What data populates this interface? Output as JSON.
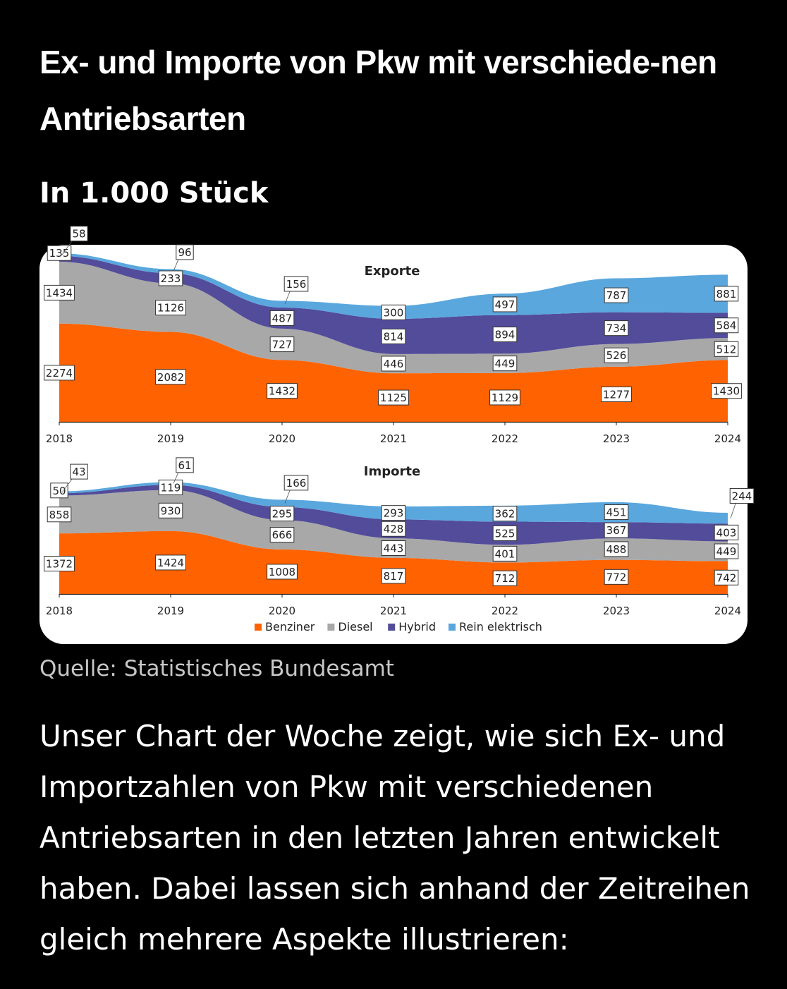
{
  "header": {
    "title": "Ex- und Importe von Pkw mit verschiede-nen Antriebsarten",
    "subtitle": "In 1.000 Stück"
  },
  "source": "Quelle: Statistisches Bundesamt",
  "body_text": "Unser Chart der Woche zeigt, wie sich Ex- und Importzahlen von Pkw mit verschiedenen Antriebsarten in den letzten Jahren entwickelt haben. Dabei lassen sich anhand der Zeitreihen gleich mehrere Aspekte illustrieren:",
  "legend": [
    {
      "name": "Benziner",
      "color": "#ff6200"
    },
    {
      "name": "Diesel",
      "color": "#a8a8a8"
    },
    {
      "name": "Hybrid",
      "color": "#524c9a"
    },
    {
      "name": "Rein elektrisch",
      "color": "#5aa7de"
    }
  ],
  "chart_data": [
    {
      "type": "area",
      "stacked": true,
      "title": "Exporte",
      "x": [
        "2018",
        "2019",
        "2020",
        "2021",
        "2022",
        "2023",
        "2024"
      ],
      "ylim": [
        0,
        4100
      ],
      "series": [
        {
          "name": "Benziner",
          "color": "#ff6200",
          "values": [
            2274,
            2082,
            1432,
            1125,
            1129,
            1277,
            1430
          ]
        },
        {
          "name": "Diesel",
          "color": "#a8a8a8",
          "values": [
            1434,
            1126,
            727,
            446,
            449,
            526,
            512
          ]
        },
        {
          "name": "Hybrid",
          "color": "#524c9a",
          "values": [
            135,
            233,
            487,
            814,
            894,
            734,
            584
          ]
        },
        {
          "name": "Rein elektrisch",
          "color": "#5aa7de",
          "values": [
            58,
            96,
            156,
            300,
            497,
            787,
            881
          ]
        }
      ]
    },
    {
      "type": "area",
      "stacked": true,
      "title": "Importe",
      "x": [
        "2018",
        "2019",
        "2020",
        "2021",
        "2022",
        "2023",
        "2024"
      ],
      "ylim": [
        0,
        2700
      ],
      "series": [
        {
          "name": "Benziner",
          "color": "#ff6200",
          "values": [
            1372,
            1424,
            1008,
            817,
            712,
            772,
            742
          ]
        },
        {
          "name": "Diesel",
          "color": "#a8a8a8",
          "values": [
            858,
            930,
            666,
            443,
            401,
            488,
            449
          ]
        },
        {
          "name": "Hybrid",
          "color": "#524c9a",
          "values": [
            50,
            119,
            295,
            428,
            525,
            367,
            403
          ]
        },
        {
          "name": "Rein elektrisch",
          "color": "#5aa7de",
          "values": [
            43,
            61,
            166,
            293,
            362,
            451,
            244
          ]
        }
      ]
    }
  ]
}
